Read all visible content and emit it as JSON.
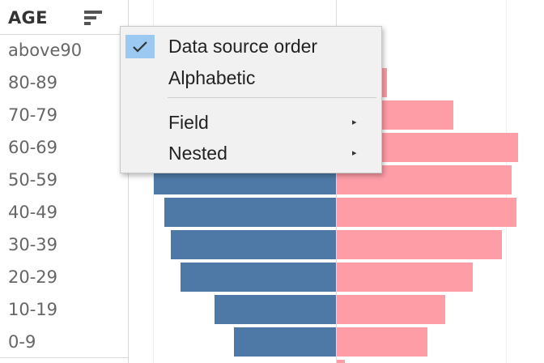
{
  "header": {
    "title": "AGE",
    "sort_icon": "sort-icon"
  },
  "rows": [
    {
      "label": "above90"
    },
    {
      "label": "80-89"
    },
    {
      "label": "70-79"
    },
    {
      "label": "60-69"
    },
    {
      "label": "50-59"
    },
    {
      "label": "40-49"
    },
    {
      "label": "30-39"
    },
    {
      "label": "20-29"
    },
    {
      "label": "10-19"
    },
    {
      "label": "0-9"
    }
  ],
  "chart_data": {
    "type": "bar",
    "orientation": "horizontal",
    "categories": [
      "above90",
      "80-89",
      "70-79",
      "60-69",
      "50-59",
      "40-49",
      "30-39",
      "20-29",
      "10-19",
      "0-9"
    ],
    "series": [
      {
        "values": [
          null,
          null,
          null,
          null,
          225,
          212,
          204,
          192,
          150,
          126
        ],
        "color": "#4e79a7"
      },
      {
        "values": [
          null,
          62,
          144,
          224,
          216,
          222,
          204,
          168,
          134,
          112
        ],
        "color": "#ff9da7"
      }
    ],
    "grid": true
  },
  "menu": {
    "items": [
      {
        "label": "Data source order",
        "checked": true,
        "check_icon": "checkmark-icon"
      },
      {
        "label": "Alphabetic",
        "checked": false
      },
      {
        "label": "Field",
        "submenu": true,
        "arrow_icon": "submenu-arrow-icon"
      },
      {
        "label": "Nested",
        "submenu": true,
        "arrow_icon": "submenu-arrow-icon"
      }
    ],
    "arrow_glyph": "▸"
  }
}
